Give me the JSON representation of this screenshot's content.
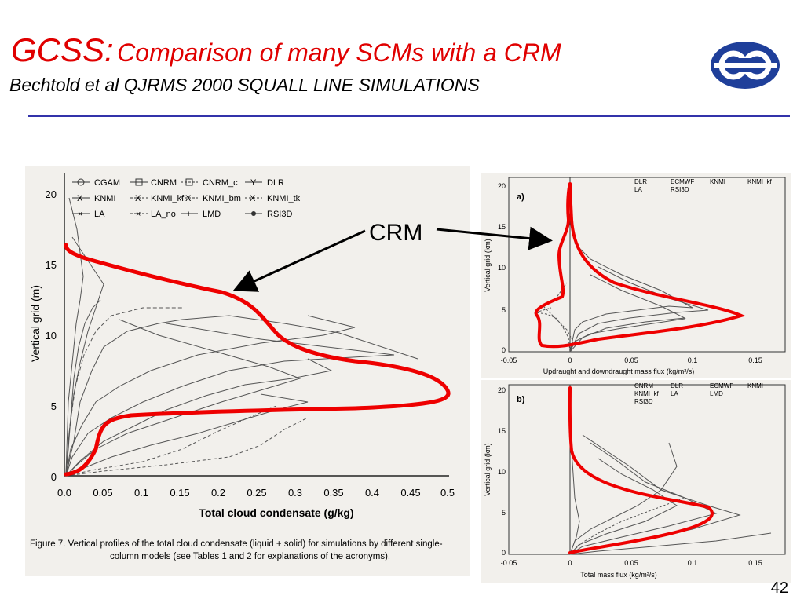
{
  "slide": {
    "title_main": "GCSS:",
    "title_rest": "Comparison of many SCMs with a CRM",
    "subtitle": "Bechtold et al QJRMS 2000 SQUALL LINE SIMULATIONS",
    "callout": "CRM",
    "page_number": "42",
    "accent_color": "#e00000",
    "rule_color": "#3333aa"
  },
  "left_figure": {
    "ylabel": "Vertical grid (m)",
    "xlabel": "Total cloud condensate (g/kg)",
    "xticks": [
      "0.0",
      "0.05",
      "0.1",
      "0.15",
      "0.2",
      "0.25",
      "0.3",
      "0.35",
      "0.4",
      "0.45",
      "0.5"
    ],
    "yticks": [
      "0",
      "5",
      "10",
      "15",
      "20"
    ],
    "legend": [
      "CGAM",
      "CNRM",
      "CNRM_c",
      "DLR",
      "KNMI",
      "KNMI_kf",
      "KNMI_bm",
      "KNMI_tk",
      "LA",
      "LA_no",
      "LMD",
      "RSI3D"
    ],
    "caption_line1": "Figure 7.   Vertical profiles of the total cloud condensate (liquid + solid) for simulations by different single-",
    "caption_line2": "column models (see Tables 1 and 2 for explanations of the acronyms)."
  },
  "right_top": {
    "panel_label": "a)",
    "ylabel": "Vertical grid (km)",
    "xlabel": "Updraught and downdraught mass flux (kg/m²/s)",
    "xticks": [
      "-0.05",
      "0",
      "0.05",
      "0.1",
      "0.15"
    ],
    "yticks": [
      "0",
      "5",
      "10",
      "15",
      "20"
    ],
    "legend": [
      "DLR",
      "ECMWF",
      "KNMI",
      "KNMI_kf",
      "LA",
      "RSI3D"
    ]
  },
  "right_bottom": {
    "panel_label": "b)",
    "ylabel": "Vertical grid (km)",
    "xlabel": "Total mass flux (kg/m²/s)",
    "xticks": [
      "-0.05",
      "0",
      "0.05",
      "0.1",
      "0.15"
    ],
    "yticks": [
      "0",
      "5",
      "10",
      "15",
      "20"
    ],
    "legend": [
      "CNRM",
      "DLR",
      "ECMWF",
      "KNMI",
      "KNMI_kf",
      "LA",
      "LMD",
      "RSI3D"
    ]
  }
}
